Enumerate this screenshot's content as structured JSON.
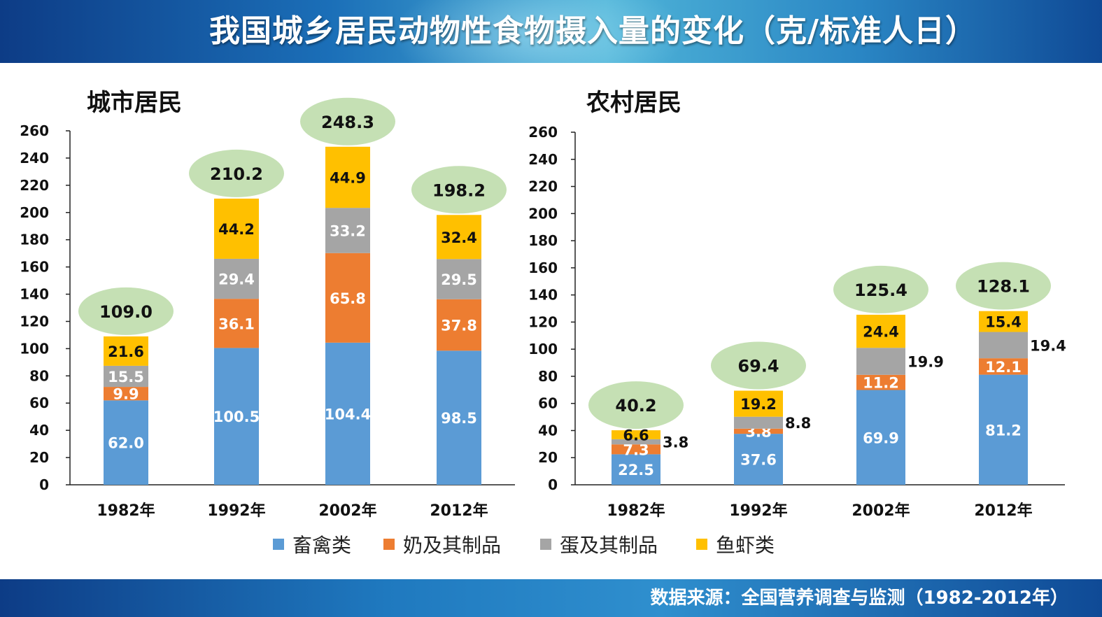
{
  "header": {
    "title": "我国城乡居民动物性食物摄入量的变化（克/标准人日）"
  },
  "footer": {
    "source": "数据来源：全国营养调查与监测（1982-2012年）"
  },
  "legend": [
    {
      "name": "畜禽类",
      "color": "#5b9bd5"
    },
    {
      "name": "奶及其制品",
      "color": "#ed7d31"
    },
    {
      "name": "蛋及其制品",
      "color": "#a5a5a5"
    },
    {
      "name": "鱼虾类",
      "color": "#ffc000"
    }
  ],
  "bubble_color": "#c5e0b4",
  "chart_data": [
    {
      "type": "bar",
      "stacked": true,
      "title": "城市居民",
      "categories": [
        "1982年",
        "1992年",
        "2002年",
        "2012年"
      ],
      "ylim": [
        0,
        260
      ],
      "yticks": [
        "0",
        "20",
        "40",
        "60",
        "80",
        "100",
        "120",
        "140",
        "160",
        "180",
        "200",
        "220",
        "240",
        "260"
      ],
      "series": [
        {
          "name": "畜禽类",
          "values": [
            62.0,
            100.5,
            104.4,
            98.5
          ],
          "labels": [
            "62.0",
            "100.5",
            "104.4",
            "98.5"
          ]
        },
        {
          "name": "奶及其制品",
          "values": [
            9.9,
            36.1,
            65.8,
            37.8
          ],
          "labels": [
            "9.9",
            "36.1",
            "65.8",
            "37.8"
          ]
        },
        {
          "name": "蛋及其制品",
          "values": [
            15.5,
            29.4,
            33.2,
            29.5
          ],
          "labels": [
            "15.5",
            "29.4",
            "33.2",
            "29.5"
          ]
        },
        {
          "name": "鱼虾类",
          "values": [
            21.6,
            44.2,
            44.9,
            32.4
          ],
          "labels": [
            "21.6",
            "44.2",
            "44.9",
            "32.4"
          ]
        }
      ],
      "totals": [
        "109.0",
        "210.2",
        "248.3",
        "198.2"
      ]
    },
    {
      "type": "bar",
      "stacked": true,
      "title": "农村居民",
      "categories": [
        "1982年",
        "1992年",
        "2002年",
        "2012年"
      ],
      "ylim": [
        0,
        260
      ],
      "yticks": [
        "0",
        "20",
        "40",
        "60",
        "80",
        "100",
        "120",
        "140",
        "160",
        "180",
        "200",
        "220",
        "240",
        "260"
      ],
      "series": [
        {
          "name": "畜禽类",
          "values": [
            22.5,
            37.6,
            69.9,
            81.2
          ],
          "labels": [
            "22.5",
            "37.6",
            "69.9",
            "81.2"
          ]
        },
        {
          "name": "奶及其制品",
          "values": [
            7.3,
            3.8,
            11.2,
            12.1
          ],
          "labels": [
            "7.3",
            "3.8",
            "11.2",
            "12.1"
          ]
        },
        {
          "name": "蛋及其制品",
          "values": [
            3.8,
            8.8,
            19.9,
            19.4
          ],
          "labels": [
            "3.8",
            "8.8",
            "19.9",
            "19.4"
          ]
        },
        {
          "name": "鱼虾类",
          "values": [
            6.6,
            19.2,
            24.4,
            15.4
          ],
          "labels": [
            "6.6",
            "19.2",
            "24.4",
            "15.4"
          ]
        }
      ],
      "totals": [
        "40.2",
        "69.4",
        "125.4",
        "128.1"
      ]
    }
  ]
}
